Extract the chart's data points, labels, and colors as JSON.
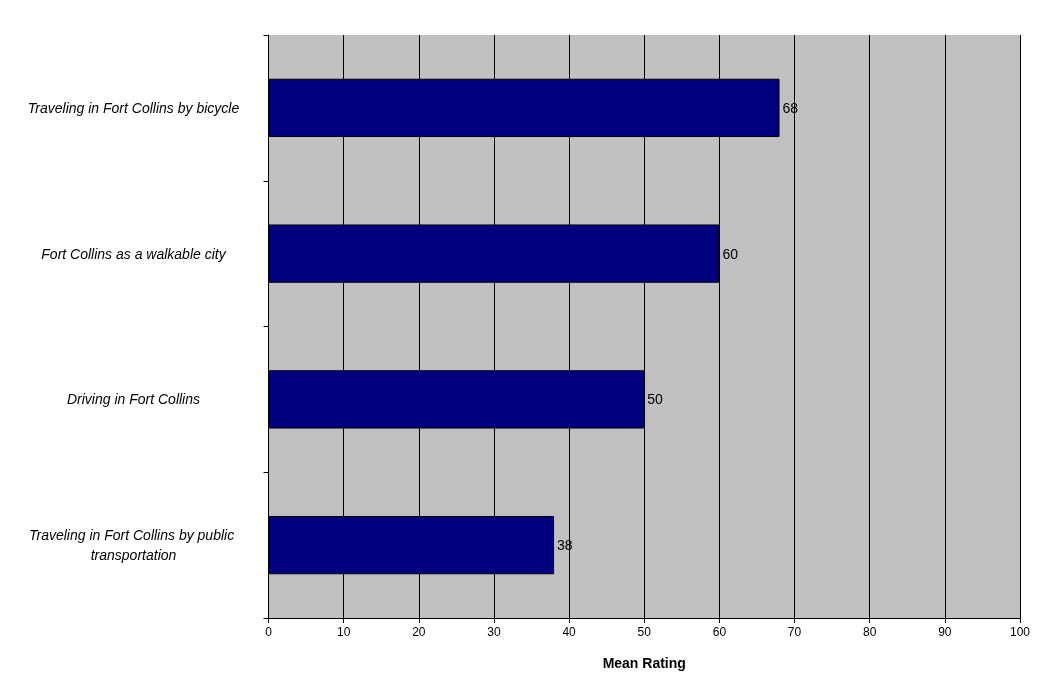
{
  "chart_data": {
    "type": "bar",
    "orientation": "horizontal",
    "xlabel": "Mean Rating",
    "categories": [
      "Traveling in Fort Collins by bicycle",
      "Fort Collins as a walkable city",
      "Driving in Fort Collins",
      "Traveling in Fort Collins by public transportation"
    ],
    "values": [
      68,
      60,
      50,
      38
    ],
    "color": "#000080",
    "xlim": [
      0,
      100
    ],
    "xticks": [
      0,
      10,
      20,
      30,
      40,
      50,
      60,
      70,
      80,
      90,
      100
    ],
    "grid": "x",
    "data_labels": true
  }
}
